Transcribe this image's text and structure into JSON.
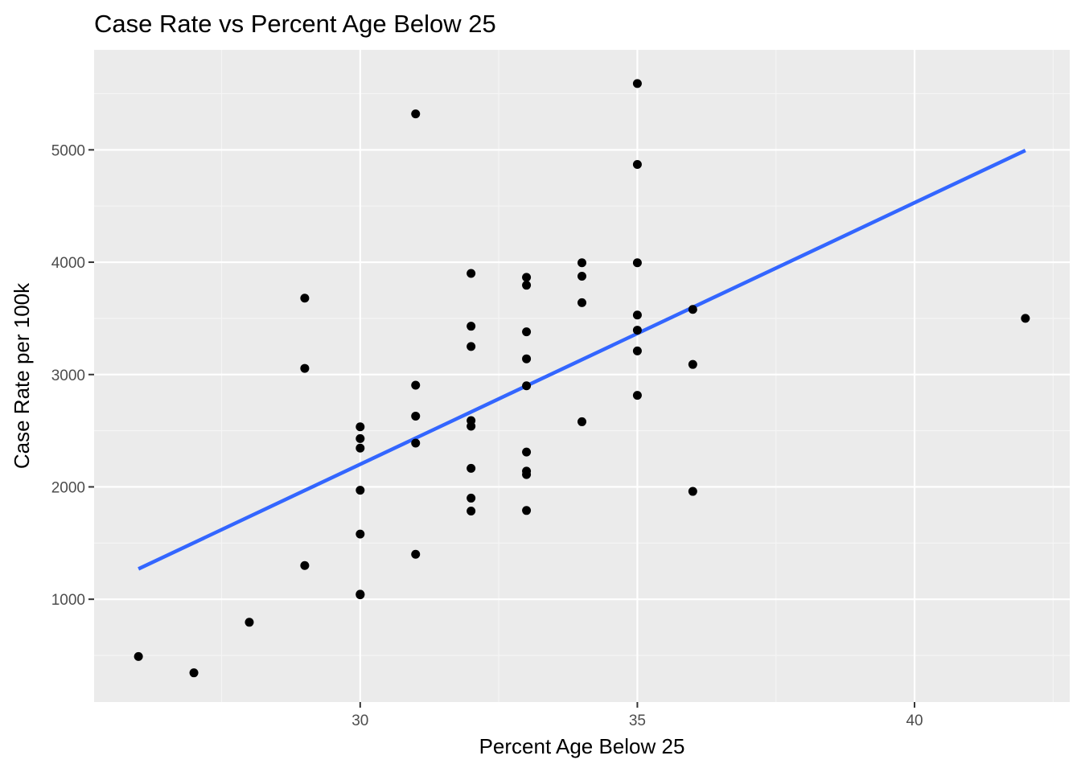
{
  "chart_data": {
    "type": "scatter",
    "title": "Case Rate vs Percent Age Below 25",
    "xlabel": "Percent Age Below 25",
    "ylabel": "Case Rate per 100k",
    "xlim": [
      25.2,
      42.8
    ],
    "ylim": [
      85,
      5890
    ],
    "x_ticks": [
      30,
      35,
      40
    ],
    "x_tick_labels": [
      "30",
      "35",
      "40"
    ],
    "y_ticks": [
      1000,
      2000,
      3000,
      4000,
      5000
    ],
    "y_tick_labels": [
      "1000",
      "2000",
      "3000",
      "4000",
      "5000"
    ],
    "grid": true,
    "legend": "none",
    "points": [
      {
        "x": 26,
        "y": 490
      },
      {
        "x": 27,
        "y": 345
      },
      {
        "x": 28,
        "y": 795
      },
      {
        "x": 29,
        "y": 3680
      },
      {
        "x": 29,
        "y": 3055
      },
      {
        "x": 29,
        "y": 1300
      },
      {
        "x": 30,
        "y": 2535
      },
      {
        "x": 30,
        "y": 2430
      },
      {
        "x": 30,
        "y": 2345
      },
      {
        "x": 30,
        "y": 1970
      },
      {
        "x": 30,
        "y": 1580
      },
      {
        "x": 30,
        "y": 1045
      },
      {
        "x": 30,
        "y": 1040
      },
      {
        "x": 31,
        "y": 5320
      },
      {
        "x": 31,
        "y": 2905
      },
      {
        "x": 31,
        "y": 2630
      },
      {
        "x": 31,
        "y": 2390
      },
      {
        "x": 31,
        "y": 1400
      },
      {
        "x": 32,
        "y": 3900
      },
      {
        "x": 32,
        "y": 3430
      },
      {
        "x": 32,
        "y": 3250
      },
      {
        "x": 32,
        "y": 2590
      },
      {
        "x": 32,
        "y": 2540
      },
      {
        "x": 32,
        "y": 2165
      },
      {
        "x": 32,
        "y": 1900
      },
      {
        "x": 32,
        "y": 1785
      },
      {
        "x": 33,
        "y": 3865
      },
      {
        "x": 33,
        "y": 3795
      },
      {
        "x": 33,
        "y": 3380
      },
      {
        "x": 33,
        "y": 3140
      },
      {
        "x": 33,
        "y": 2900
      },
      {
        "x": 33,
        "y": 2310
      },
      {
        "x": 33,
        "y": 2140
      },
      {
        "x": 33,
        "y": 2110
      },
      {
        "x": 33,
        "y": 1790
      },
      {
        "x": 34,
        "y": 3995
      },
      {
        "x": 34,
        "y": 3875
      },
      {
        "x": 34,
        "y": 3640
      },
      {
        "x": 34,
        "y": 2580
      },
      {
        "x": 35,
        "y": 5590
      },
      {
        "x": 35,
        "y": 4870
      },
      {
        "x": 35,
        "y": 3995
      },
      {
        "x": 35,
        "y": 3530
      },
      {
        "x": 35,
        "y": 3395
      },
      {
        "x": 35,
        "y": 3210
      },
      {
        "x": 35,
        "y": 2815
      },
      {
        "x": 36,
        "y": 3580
      },
      {
        "x": 36,
        "y": 3090
      },
      {
        "x": 36,
        "y": 1960
      },
      {
        "x": 42,
        "y": 3500
      }
    ],
    "trend_line": {
      "color": "#3366ff",
      "points": [
        {
          "x": 26,
          "y": 1270
        },
        {
          "x": 42,
          "y": 4995
        }
      ]
    },
    "colors": {
      "panel_background": "#ebebeb",
      "grid_major": "#ffffff",
      "grid_minor": "#f5f5f5",
      "point": "#000000"
    }
  }
}
